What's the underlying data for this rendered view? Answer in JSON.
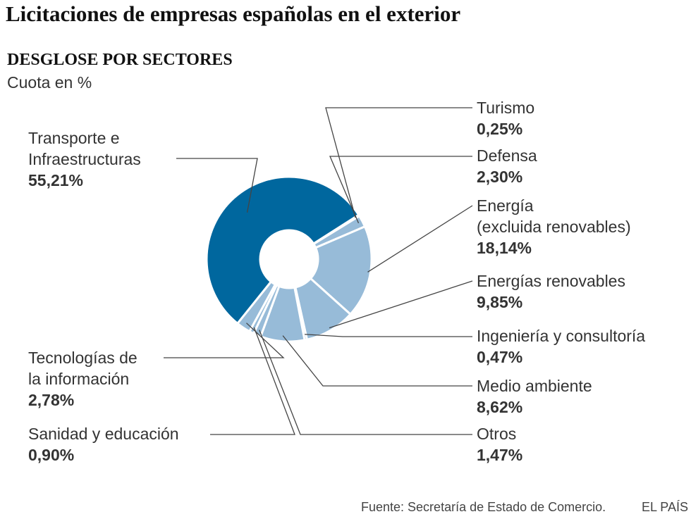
{
  "chart_data": {
    "type": "pie",
    "title": "Licitaciones de empresas españolas en el exterior",
    "subtitle": "DESGLOSE POR SECTORES",
    "unit_label": "Cuota en %",
    "slices": [
      {
        "name": "Turismo",
        "value": 0.25,
        "display": "0,25%",
        "color": "#97bbd8"
      },
      {
        "name": "Defensa",
        "value": 2.3,
        "display": "2,30%",
        "color": "#97bbd8"
      },
      {
        "name": "Energía\n(excluida renovables)",
        "name_lines": [
          "Energía",
          "(excluida renovables)"
        ],
        "value": 18.14,
        "display": "18,14%",
        "color": "#97bbd8"
      },
      {
        "name": "Energías renovables",
        "name_lines": [
          "Energías renovables"
        ],
        "value": 9.85,
        "display": "9,85%",
        "color": "#97bbd8"
      },
      {
        "name": "Ingeniería y consultoría",
        "name_lines": [
          "Ingeniería y consultoría"
        ],
        "value": 0.47,
        "display": "0,47%",
        "color": "#97bbd8"
      },
      {
        "name": "Medio ambiente",
        "name_lines": [
          "Medio ambiente"
        ],
        "value": 8.62,
        "display": "8,62%",
        "color": "#97bbd8"
      },
      {
        "name": "Otros",
        "name_lines": [
          "Otros"
        ],
        "value": 1.47,
        "display": "1,47%",
        "color": "#97bbd8"
      },
      {
        "name": "Sanidad y educación",
        "name_lines": [
          "Sanidad y educación"
        ],
        "value": 0.9,
        "display": "0,90%",
        "color": "#97bbd8"
      },
      {
        "name": "Tecnologías de\nla información",
        "name_lines": [
          "Tecnologías de",
          "la información"
        ],
        "value": 2.78,
        "display": "2,78%",
        "color": "#97bbd8"
      },
      {
        "name": "Transporte e\nInfraestructuras",
        "name_lines": [
          "Transporte e",
          "Infraestructuras"
        ],
        "value": 55.21,
        "display": "55,21%",
        "color": "#00679e"
      }
    ]
  },
  "footer": {
    "source": "Fuente: Secretaría de Estado de Comercio.",
    "brand": "EL PAÍS"
  }
}
